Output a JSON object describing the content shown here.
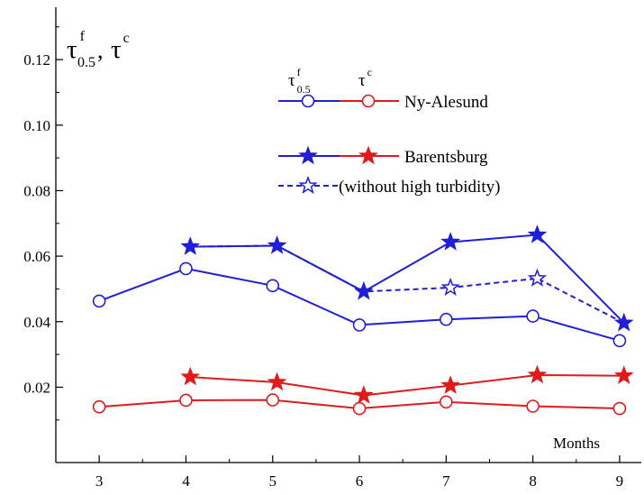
{
  "chart_data": {
    "type": "line",
    "title": "",
    "xlabel": "Months",
    "ylabel": {
      "tau_symbol": "τ",
      "f_superscript": "f",
      "subscript": "0.5",
      "separator": ", ",
      "c_superscript": "c"
    },
    "xlim": [
      2.5,
      9.25
    ],
    "ylim": [
      -0.003,
      0.136
    ],
    "x_ticks": [
      3,
      4,
      5,
      6,
      7,
      8,
      9
    ],
    "y_ticks": [
      "0.02",
      "0.04",
      "0.06",
      "0.08",
      "0.10",
      "0.12"
    ],
    "y_tick_values": [
      0.02,
      0.04,
      0.06,
      0.08,
      0.1,
      0.12
    ],
    "legend_header": {
      "col1_symbol": "τ",
      "col1_superscript": "f",
      "col1_subscript": "0.5",
      "col2_symbol": "τ",
      "col2_superscript": "c"
    },
    "legend_entries": [
      {
        "label": "Ny-Alesund"
      },
      {
        "label": "Barentsburg"
      },
      {
        "label": "(without high turbidity)"
      }
    ],
    "series": [
      {
        "name": "Ny-Alesund",
        "color": "#1f1fd6",
        "marker": "circle",
        "dash": "solid",
        "x": [
          3,
          4,
          5,
          6,
          7,
          8,
          9
        ],
        "values": [
          0.0463,
          0.0562,
          0.051,
          0.039,
          0.0407,
          0.0417,
          0.0342
        ]
      },
      {
        "name": "Ny-Alesund",
        "color": "#e01b1b",
        "marker": "circle",
        "dash": "solid",
        "x": [
          3,
          4,
          5,
          6,
          7,
          8,
          9
        ],
        "values": [
          0.014,
          0.016,
          0.0161,
          0.0135,
          0.0155,
          0.0142,
          0.0135
        ]
      },
      {
        "name": "Barentsburg",
        "color": "#1f1fd6",
        "marker": "star",
        "dash": "solid",
        "x": [
          4.05,
          5.05,
          6.05,
          7.05,
          8.05,
          9.05
        ],
        "values": [
          0.0629,
          0.0632,
          0.0492,
          0.0643,
          0.0665,
          0.0396
        ]
      },
      {
        "name": "Barentsburg",
        "color": "#e01b1b",
        "marker": "star",
        "dash": "solid",
        "x": [
          4.05,
          5.05,
          6.05,
          7.05,
          8.05,
          9.05
        ],
        "values": [
          0.0231,
          0.0215,
          0.0175,
          0.0205,
          0.0237,
          0.0235
        ]
      },
      {
        "name": "(without high turbidity)",
        "color": "#1f1fd6",
        "marker": "star-open",
        "dash": "dashed",
        "x": [
          4.05,
          5.05,
          6.05,
          7.05,
          8.05,
          9.05
        ],
        "values": [
          0.0629,
          0.0632,
          0.0492,
          0.0504,
          0.0532,
          0.0396
        ]
      }
    ]
  }
}
